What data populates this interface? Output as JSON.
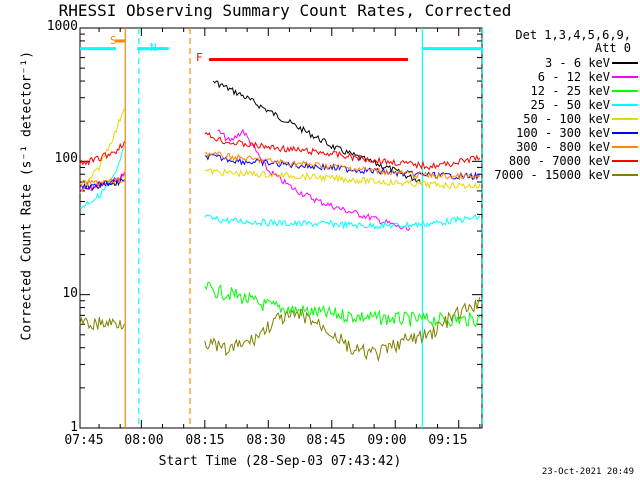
{
  "chart_data": {
    "type": "line",
    "title": "RHESSI Observing Summary Count Rates, Corrected",
    "xlabel": "Start Time (28-Sep-03 07:43:42)",
    "ylabel": "Corrected Count Rate (s⁻¹ detector⁻¹)",
    "yscale": "log",
    "ylim": [
      1,
      1000
    ],
    "xlim": [
      1.5,
      96.5
    ],
    "x_unit": "minutes after 07:44",
    "y_ticks": [
      "1",
      "10",
      "100",
      "1000"
    ],
    "x_ticks": [
      {
        "label": "07:45",
        "x": 1
      },
      {
        "label": "08:00",
        "x": 16
      },
      {
        "label": "08:15",
        "x": 31
      },
      {
        "label": "08:30",
        "x": 46
      },
      {
        "label": "08:45",
        "x": 61
      },
      {
        "label": "09:00",
        "x": 76
      },
      {
        "label": "09:15",
        "x": 91
      }
    ],
    "legend_header": [
      "Det 1,3,4,5,6,9,",
      "Att 0"
    ],
    "gaps": [
      [
        12,
        29
      ]
    ],
    "series": [
      {
        "name": "3 - 6 keV",
        "color": "#000000",
        "x": [
          1.5,
          10,
          12,
          29,
          33,
          40,
          48,
          56,
          62,
          68,
          74,
          80,
          82
        ],
        "y": [
          60,
          70,
          80,
          null,
          400,
          310,
          220,
          160,
          125,
          105,
          90,
          75,
          72
        ]
      },
      {
        "name": "6 - 12 keV",
        "color": "#ff00ff",
        "x": [
          1.5,
          10,
          12,
          29,
          34,
          37,
          40,
          46,
          52,
          58,
          64,
          70,
          76,
          79.5
        ],
        "y": [
          62,
          72,
          80,
          null,
          170,
          140,
          170,
          85,
          62,
          50,
          43,
          38,
          33,
          30
        ]
      },
      {
        "name": "12 - 25 keV",
        "color": "#00ff00",
        "x": [
          29,
          31,
          34,
          38,
          44,
          50,
          58,
          66,
          74,
          82,
          88,
          96
        ],
        "y": [
          null,
          11.5,
          10.5,
          10,
          8.5,
          7.8,
          7.3,
          6.9,
          6.6,
          6.5,
          6.5,
          6.5
        ]
      },
      {
        "name": "25 - 50 keV",
        "color": "#00ffff",
        "x": [
          1.5,
          6,
          10,
          12,
          29,
          31,
          36,
          44,
          52,
          60,
          68,
          76,
          84,
          90,
          96
        ],
        "y": [
          45,
          55,
          80,
          130,
          null,
          38,
          36,
          35,
          34,
          34,
          33,
          33,
          34,
          36,
          38
        ]
      },
      {
        "name": "50 - 100 keV",
        "color": "#e8d800",
        "x": [
          1.5,
          6,
          10,
          12,
          29,
          31,
          36,
          44,
          52,
          60,
          68,
          76,
          84,
          90,
          96
        ],
        "y": [
          58,
          90,
          170,
          260,
          null,
          85,
          82,
          80,
          78,
          75,
          72,
          69,
          67,
          66,
          65
        ]
      },
      {
        "name": "100 - 300 keV",
        "color": "#0000ff",
        "x": [
          1.5,
          12,
          29,
          31,
          40,
          50,
          60,
          70,
          80,
          88,
          96
        ],
        "y": [
          65,
          70,
          null,
          110,
          100,
          95,
          90,
          85,
          80,
          78,
          77
        ]
      },
      {
        "name": "300 - 800 keV",
        "color": "#ff8800",
        "x": [
          1.5,
          12,
          29,
          31,
          40,
          50,
          60,
          70,
          80,
          88,
          96
        ],
        "y": [
          68,
          72,
          null,
          115,
          105,
          98,
          92,
          86,
          80,
          77,
          76
        ]
      },
      {
        "name": "800 - 7000 keV",
        "color": "#ff0000",
        "x": [
          1.5,
          6,
          10,
          12,
          29,
          31,
          36,
          44,
          52,
          60,
          68,
          76,
          80,
          84,
          88,
          92,
          96
        ],
        "y": [
          95,
          105,
          120,
          140,
          null,
          160,
          140,
          130,
          122,
          115,
          105,
          98,
          95,
          92,
          95,
          100,
          108
        ]
      },
      {
        "name": "7000 - 15000 keV",
        "color": "#808000",
        "x": [
          1.5,
          12,
          29,
          31,
          36,
          42,
          48,
          54,
          60,
          66,
          72,
          78,
          84,
          90,
          96
        ],
        "y": [
          6,
          6.2,
          null,
          4.5,
          3.8,
          4.5,
          6.5,
          7,
          5.5,
          3.8,
          3.6,
          4.5,
          5,
          7,
          8.5
        ]
      }
    ],
    "annotations": [
      {
        "label": "S",
        "color": "#ff8800",
        "type": "bar",
        "x_start": 9.8,
        "x_end": 12.2,
        "y": 800
      },
      {
        "label": "N",
        "color": "#00ffff",
        "type": "bar",
        "x_start": 15,
        "x_end": 22.5,
        "y": 700
      },
      {
        "label": "F",
        "color": "#ff0000",
        "type": "bar",
        "x_start": 32,
        "x_end": 79,
        "y": 580
      }
    ],
    "cyan_bars": [
      {
        "x_start": 1.5,
        "x_end": 10,
        "y": 700
      },
      {
        "x_start": 82.5,
        "x_end": 96.5,
        "y": 700
      }
    ],
    "vertical_lines": [
      {
        "x": 12.2,
        "color": "#ff8800",
        "style": "solid"
      },
      {
        "x": 27.5,
        "color": "#ff8800",
        "style": "dashed"
      },
      {
        "x": 15.4,
        "color": "#00ffff",
        "style": "dashed"
      },
      {
        "x": 82.4,
        "color": "#00ffff",
        "style": "solid"
      },
      {
        "x": 96.6,
        "color": "#00ffff",
        "style": "dashed"
      }
    ]
  },
  "timestamp": "23-Oct-2021 20:49"
}
